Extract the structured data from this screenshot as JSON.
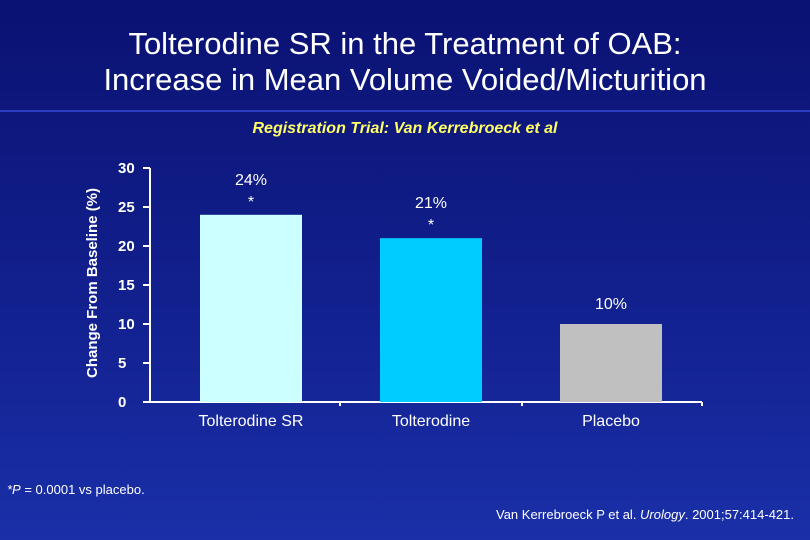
{
  "slide": {
    "title_line1": "Tolterodine SR in the Treatment of OAB:",
    "title_line2": "Increase in Mean Volume Voided/Micturition",
    "subtitle": "Registration Trial: Van Kerrebroeck et al",
    "footnote_p": "*P",
    "footnote_rest": " = 0.0001 vs placebo.",
    "citation_authors": "Van Kerrebroeck P et al. ",
    "citation_journal": "Urology",
    "citation_rest": ". 2001;57:414-421."
  },
  "chart_data": {
    "type": "bar",
    "title": "",
    "ylabel": "Change From Baseline (%)",
    "xlabel": "",
    "categories": [
      "Tolterodine SR",
      "Tolterodine",
      "Placebo"
    ],
    "values": [
      24,
      21,
      10
    ],
    "data_labels": [
      "24%",
      "21%",
      "10%"
    ],
    "significance_marks": [
      "*",
      "*",
      ""
    ],
    "ylim": [
      0,
      30
    ],
    "yticks": [
      0,
      5,
      10,
      15,
      20,
      25,
      30
    ],
    "grid": false,
    "colors": [
      "#ccffff",
      "#00ccff",
      "#c0c0c0"
    ]
  }
}
